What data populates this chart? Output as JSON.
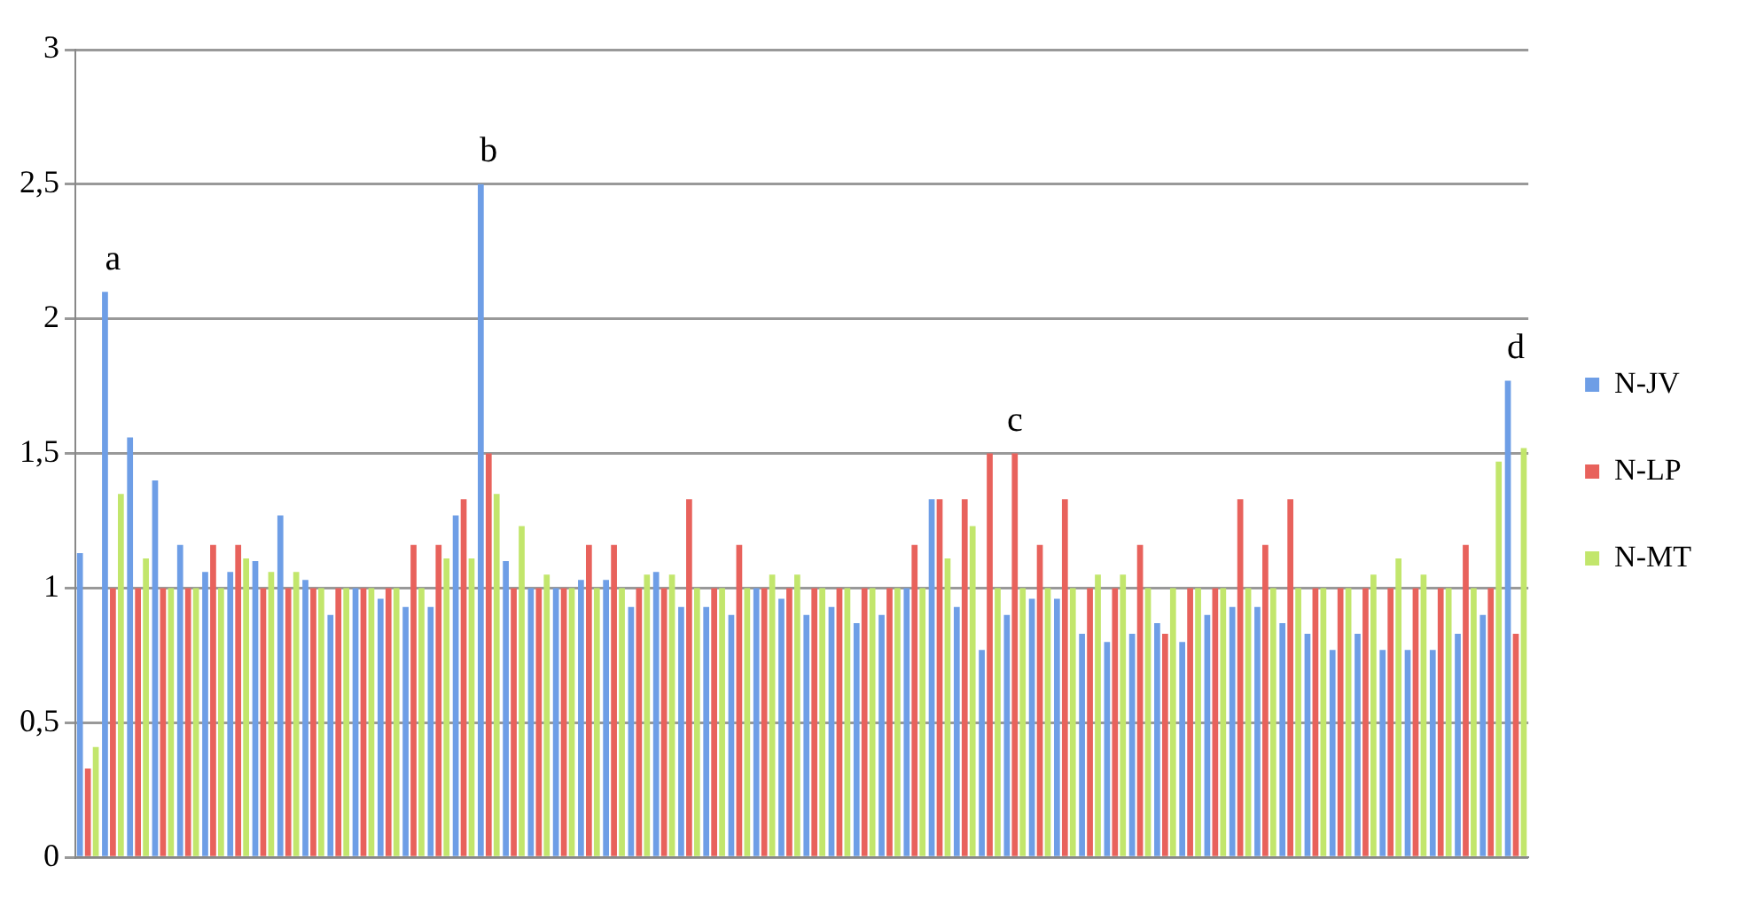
{
  "chart_data": {
    "type": "bar",
    "categories": [
      null,
      null,
      null,
      null,
      null,
      null,
      null,
      null,
      null,
      null,
      null,
      null,
      null,
      null,
      null,
      null,
      null,
      null,
      null,
      null,
      null,
      null,
      null,
      null,
      null,
      null,
      null,
      null,
      null,
      null,
      null,
      null,
      null,
      null,
      null,
      null,
      null,
      null,
      null,
      null,
      null,
      null,
      null,
      null,
      null,
      null,
      null,
      null,
      null,
      null,
      null,
      null,
      null,
      null,
      null,
      null,
      null,
      null
    ],
    "series": [
      {
        "name": "N-JV",
        "color": "#6e9ee6",
        "values": [
          1.13,
          2.1,
          1.56,
          1.4,
          1.16,
          1.06,
          1.06,
          1.1,
          1.27,
          1.03,
          0.9,
          1,
          0.96,
          0.93,
          0.93,
          1.27,
          2.5,
          1.1,
          1,
          1,
          1.03,
          1.03,
          0.93,
          1.06,
          0.93,
          0.93,
          0.9,
          1,
          0.96,
          0.9,
          0.93,
          0.87,
          0.9,
          1,
          1.33,
          0.93,
          0.77,
          0.9,
          0.96,
          0.96,
          0.83,
          0.8,
          0.83,
          0.87,
          0.8,
          0.9,
          0.93,
          0.93,
          0.87,
          0.83,
          0.77,
          0.83,
          0.77,
          0.77,
          0.77,
          0.83,
          0.9,
          1.77
        ]
      },
      {
        "name": "N-LP",
        "color": "#e8625c",
        "values": [
          0.33,
          1,
          1,
          1,
          1,
          1.16,
          1.16,
          1,
          1,
          1,
          1,
          1,
          1,
          1.16,
          1.16,
          1.33,
          1.5,
          1,
          1,
          1,
          1.16,
          1.16,
          1,
          1,
          1.33,
          1,
          1.16,
          1,
          1,
          1,
          1,
          1,
          1,
          1.16,
          1.33,
          1.33,
          1.5,
          1.5,
          1.16,
          1.33,
          1,
          1,
          1.16,
          0.83,
          1,
          1,
          1.33,
          1.16,
          1.33,
          1,
          1,
          1,
          1,
          1,
          1,
          1.16,
          1,
          0.83
        ]
      },
      {
        "name": "N-MT",
        "color": "#c2e66c",
        "values": [
          0.41,
          1.35,
          1.11,
          1,
          1,
          1,
          1.11,
          1.06,
          1.06,
          1,
          1,
          1,
          1,
          1,
          1.11,
          1.11,
          1.35,
          1.23,
          1.05,
          1,
          1,
          1,
          1.05,
          1.05,
          1,
          1,
          1,
          1.05,
          1.05,
          1,
          1,
          1,
          1,
          1,
          1.11,
          1.23,
          1,
          1,
          1,
          1,
          1.05,
          1.05,
          1,
          1,
          1,
          1,
          1,
          1,
          1,
          1,
          1,
          1.05,
          1.11,
          1.05,
          1,
          1,
          1.47,
          1.52
        ]
      }
    ],
    "ylim": [
      0,
      3
    ],
    "yticks": [
      0,
      {
        "value": 0.5,
        "label": "0,5"
      },
      1,
      {
        "value": 1.5,
        "label": "1,5"
      },
      2,
      {
        "value": 2.5,
        "label": "2,5"
      },
      3
    ],
    "grid": "y",
    "legend": "right",
    "annotations": [
      {
        "text": "a",
        "y": 2.1
      },
      {
        "text": "b",
        "y": 2.5
      },
      {
        "text": "c",
        "y": 1.5
      },
      {
        "text": "d",
        "y": 1.77
      }
    ]
  }
}
